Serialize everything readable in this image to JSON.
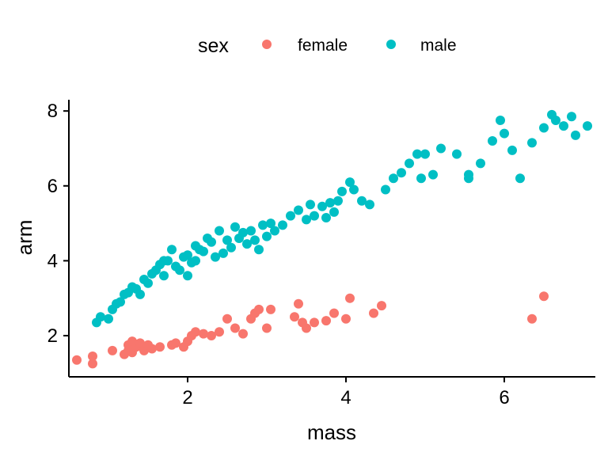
{
  "chart_data": {
    "type": "scatter",
    "title": "",
    "xlabel": "mass",
    "ylabel": "arm",
    "xlim": [
      0.5,
      7.15
    ],
    "ylim": [
      0.9,
      8.3
    ],
    "xticks": [
      2,
      4,
      6
    ],
    "yticks": [
      2,
      4,
      6,
      8
    ],
    "xtick_labels": [
      "2",
      "4",
      "6"
    ],
    "ytick_labels": [
      "2",
      "4",
      "6",
      "8"
    ],
    "legend": {
      "title": "sex",
      "position": "top",
      "entries": [
        "female",
        "male"
      ]
    },
    "grid": false,
    "series": [
      {
        "name": "female",
        "color": "#F8766D",
        "points": [
          [
            0.6,
            1.35
          ],
          [
            0.8,
            1.25
          ],
          [
            0.8,
            1.45
          ],
          [
            1.05,
            1.6
          ],
          [
            1.2,
            1.5
          ],
          [
            1.25,
            1.6
          ],
          [
            1.25,
            1.75
          ],
          [
            1.3,
            1.85
          ],
          [
            1.3,
            1.55
          ],
          [
            1.35,
            1.7
          ],
          [
            1.4,
            1.8
          ],
          [
            1.45,
            1.6
          ],
          [
            1.5,
            1.75
          ],
          [
            1.55,
            1.65
          ],
          [
            1.65,
            1.7
          ],
          [
            1.8,
            1.75
          ],
          [
            1.85,
            1.8
          ],
          [
            2.0,
            1.85
          ],
          [
            1.95,
            1.7
          ],
          [
            2.05,
            2.0
          ],
          [
            2.1,
            2.1
          ],
          [
            2.2,
            2.05
          ],
          [
            2.3,
            2.0
          ],
          [
            2.4,
            2.1
          ],
          [
            2.5,
            2.45
          ],
          [
            2.6,
            2.2
          ],
          [
            2.7,
            2.05
          ],
          [
            2.8,
            2.45
          ],
          [
            2.85,
            2.6
          ],
          [
            2.9,
            2.7
          ],
          [
            3.0,
            2.2
          ],
          [
            3.05,
            2.7
          ],
          [
            3.35,
            2.5
          ],
          [
            3.4,
            2.85
          ],
          [
            3.45,
            2.35
          ],
          [
            3.5,
            2.2
          ],
          [
            3.6,
            2.35
          ],
          [
            3.75,
            2.4
          ],
          [
            3.85,
            2.6
          ],
          [
            4.0,
            2.45
          ],
          [
            4.05,
            3.0
          ],
          [
            4.35,
            2.6
          ],
          [
            4.45,
            2.8
          ],
          [
            6.35,
            2.45
          ],
          [
            6.5,
            3.05
          ]
        ]
      },
      {
        "name": "male",
        "color": "#00BFC4",
        "points": [
          [
            0.85,
            2.35
          ],
          [
            0.9,
            2.5
          ],
          [
            1.0,
            2.45
          ],
          [
            1.05,
            2.7
          ],
          [
            1.1,
            2.85
          ],
          [
            1.15,
            2.9
          ],
          [
            1.2,
            3.1
          ],
          [
            1.25,
            3.15
          ],
          [
            1.3,
            3.3
          ],
          [
            1.35,
            3.25
          ],
          [
            1.4,
            3.1
          ],
          [
            1.45,
            3.5
          ],
          [
            1.5,
            3.4
          ],
          [
            1.55,
            3.65
          ],
          [
            1.6,
            3.75
          ],
          [
            1.65,
            3.9
          ],
          [
            1.7,
            3.6
          ],
          [
            1.75,
            4.0
          ],
          [
            1.8,
            4.3
          ],
          [
            1.85,
            3.85
          ],
          [
            1.9,
            3.75
          ],
          [
            1.95,
            4.1
          ],
          [
            2.0,
            4.15
          ],
          [
            2.05,
            3.95
          ],
          [
            2.1,
            4.4
          ],
          [
            2.15,
            4.3
          ],
          [
            2.2,
            4.25
          ],
          [
            2.25,
            4.6
          ],
          [
            2.3,
            4.5
          ],
          [
            2.35,
            4.1
          ],
          [
            2.4,
            4.8
          ],
          [
            2.45,
            4.2
          ],
          [
            2.5,
            4.55
          ],
          [
            2.55,
            4.35
          ],
          [
            2.6,
            4.9
          ],
          [
            2.65,
            4.6
          ],
          [
            2.7,
            4.75
          ],
          [
            2.75,
            4.45
          ],
          [
            2.8,
            4.8
          ],
          [
            2.85,
            4.55
          ],
          [
            2.9,
            4.3
          ],
          [
            2.95,
            4.95
          ],
          [
            3.0,
            4.65
          ],
          [
            3.05,
            5.0
          ],
          [
            3.1,
            4.8
          ],
          [
            3.2,
            4.95
          ],
          [
            3.3,
            5.2
          ],
          [
            3.4,
            5.35
          ],
          [
            3.5,
            5.1
          ],
          [
            3.55,
            5.5
          ],
          [
            3.6,
            5.2
          ],
          [
            3.7,
            5.45
          ],
          [
            3.75,
            5.15
          ],
          [
            3.8,
            5.55
          ],
          [
            3.85,
            5.3
          ],
          [
            3.9,
            5.6
          ],
          [
            3.95,
            5.85
          ],
          [
            4.05,
            6.1
          ],
          [
            4.1,
            5.9
          ],
          [
            4.2,
            5.6
          ],
          [
            4.3,
            5.5
          ],
          [
            4.5,
            5.9
          ],
          [
            4.6,
            6.2
          ],
          [
            4.7,
            6.35
          ],
          [
            4.8,
            6.6
          ],
          [
            4.9,
            6.85
          ],
          [
            5.0,
            6.85
          ],
          [
            5.1,
            6.3
          ],
          [
            5.2,
            7.0
          ],
          [
            5.4,
            6.85
          ],
          [
            5.55,
            6.3
          ],
          [
            5.7,
            6.6
          ],
          [
            5.85,
            7.2
          ],
          [
            6.0,
            7.4
          ],
          [
            6.1,
            6.95
          ],
          [
            6.2,
            6.2
          ],
          [
            6.35,
            7.15
          ],
          [
            6.5,
            7.55
          ],
          [
            6.65,
            7.75
          ],
          [
            6.75,
            7.6
          ],
          [
            6.9,
            7.35
          ],
          [
            7.05,
            7.6
          ],
          [
            6.6,
            7.9
          ],
          [
            6.85,
            7.85
          ],
          [
            5.95,
            7.75
          ],
          [
            5.55,
            6.2
          ],
          [
            4.95,
            6.2
          ],
          [
            2.1,
            4.0
          ],
          [
            2.0,
            3.6
          ],
          [
            1.7,
            4.0
          ]
        ]
      }
    ]
  }
}
